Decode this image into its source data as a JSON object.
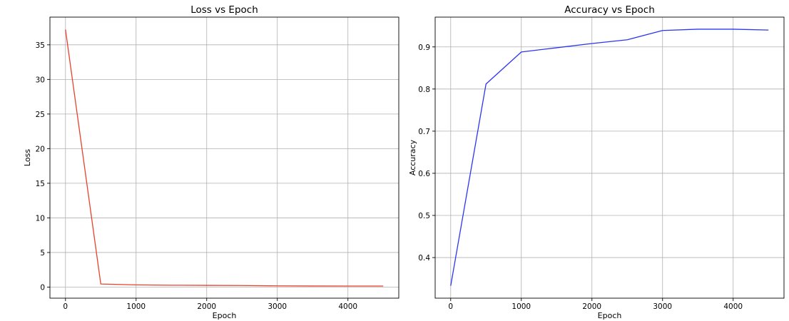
{
  "chart_data": [
    {
      "type": "line",
      "title": "Loss vs Epoch",
      "xlabel": "Epoch",
      "ylabel": "Loss",
      "xlim": [
        -220,
        4720
      ],
      "ylim": [
        -1.6,
        39.0
      ],
      "xticks": [
        0,
        1000,
        2000,
        3000,
        4000
      ],
      "yticks": [
        0,
        5,
        10,
        15,
        20,
        25,
        30,
        35
      ],
      "grid": true,
      "series": [
        {
          "color": "#e8412c",
          "x": [
            0,
            500,
            1000,
            1500,
            2000,
            2500,
            3000,
            3500,
            4000,
            4500
          ],
          "y": [
            37.2,
            0.45,
            0.32,
            0.27,
            0.25,
            0.23,
            0.18,
            0.16,
            0.15,
            0.15
          ]
        }
      ]
    },
    {
      "type": "line",
      "title": "Accuracy vs Epoch",
      "xlabel": "Epoch",
      "ylabel": "Accuracy",
      "xlim": [
        -220,
        4720
      ],
      "ylim": [
        0.3036,
        0.9707
      ],
      "xticks": [
        0,
        1000,
        2000,
        3000,
        4000
      ],
      "yticks": [
        0.4,
        0.5,
        0.6,
        0.7,
        0.8,
        0.9
      ],
      "grid": true,
      "series": [
        {
          "color": "#2b36f2",
          "x": [
            0,
            500,
            1000,
            1500,
            2000,
            2500,
            3000,
            3500,
            4000,
            4500
          ],
          "y": [
            0.333,
            0.812,
            0.888,
            0.898,
            0.908,
            0.917,
            0.939,
            0.942,
            0.942,
            0.94
          ]
        }
      ]
    }
  ]
}
